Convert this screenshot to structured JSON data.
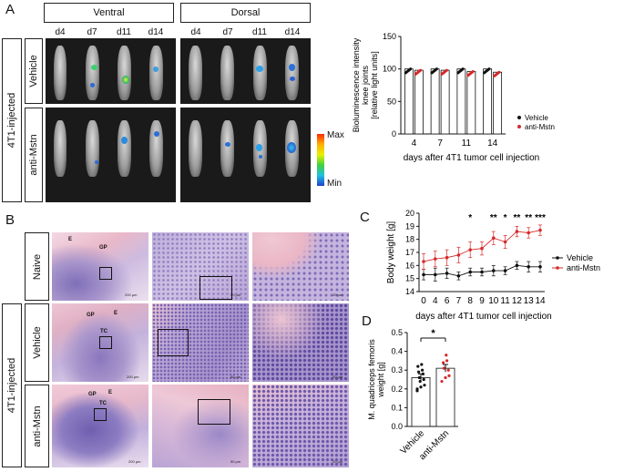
{
  "panels": {
    "A": "A",
    "B": "B",
    "C": "C",
    "D": "D"
  },
  "panelA": {
    "views": [
      "Ventral",
      "Dorsal"
    ],
    "days": [
      "d4",
      "d7",
      "d11",
      "d14"
    ],
    "group_label": "4T1-injected",
    "rows": [
      "Vehicle",
      "anti-Mstn"
    ],
    "colorbar": {
      "max": "Max",
      "min": "Min"
    }
  },
  "panelB": {
    "group_label": "4T1-injected",
    "rows": [
      "Naive",
      "Vehicle",
      "anti-Mstn"
    ],
    "annotations": {
      "E": "E",
      "GP": "GP",
      "TC": "TC"
    },
    "scale_200": "200 µm",
    "scale_50": "50 µm",
    "scale_20": "20 µm"
  },
  "legend": {
    "vehicle": "Vehicle",
    "anti": "anti-Mstn"
  },
  "colors": {
    "vehicle": "#111111",
    "anti": "#d62a2a"
  },
  "chart_data": [
    {
      "type": "bar",
      "panel": "A",
      "ylabel_lines": [
        "Bioluminescence intensity",
        "knee joints",
        "[relative light units]"
      ],
      "xlabel": "days after 4T1 tumor cell injection",
      "categories": [
        "4",
        "7",
        "11",
        "14"
      ],
      "ylim": [
        0,
        150
      ],
      "yticks": [
        "0",
        "50",
        "100",
        "150"
      ],
      "series": [
        {
          "name": "Vehicle",
          "values": [
            100,
            100,
            100,
            100
          ]
        },
        {
          "name": "anti-Mstn",
          "values": [
            98,
            98,
            96,
            95
          ]
        }
      ]
    },
    {
      "type": "line",
      "panel": "C",
      "ylabel": "Body weight [g]",
      "xlabel": "days after 4T1 tumor cell injection",
      "x": [
        "0",
        "4",
        "6",
        "7",
        "8",
        "9",
        "10",
        "11",
        "12",
        "13",
        "14"
      ],
      "ylim": [
        14,
        20
      ],
      "yticks": [
        "14",
        "15",
        "16",
        "17",
        "18",
        "19",
        "20"
      ],
      "significance": [
        "",
        "",
        "",
        "",
        "*",
        "",
        "**",
        "*",
        "**",
        "**",
        "***"
      ],
      "series": [
        {
          "name": "Vehicle",
          "values": [
            15.3,
            15.3,
            15.4,
            15.2,
            15.5,
            15.5,
            15.6,
            15.6,
            16.0,
            15.9,
            15.9
          ],
          "err": [
            0.4,
            0.5,
            0.4,
            0.3,
            0.3,
            0.3,
            0.4,
            0.3,
            0.3,
            0.4,
            0.4
          ]
        },
        {
          "name": "anti-Mstn",
          "values": [
            16.3,
            16.5,
            16.6,
            16.8,
            17.2,
            17.3,
            18.1,
            17.8,
            18.6,
            18.5,
            18.7
          ],
          "err": [
            0.6,
            0.6,
            0.6,
            0.6,
            0.6,
            0.5,
            0.5,
            0.5,
            0.4,
            0.4,
            0.4
          ]
        }
      ]
    },
    {
      "type": "bar",
      "panel": "D",
      "ylabel_lines": [
        "M. quadriceps femoris",
        "weight [g]"
      ],
      "categories": [
        "Vehicle",
        "anti-Mstn"
      ],
      "ylim": [
        0,
        0.5
      ],
      "yticks": [
        "0.0",
        "0.1",
        "0.2",
        "0.3",
        "0.4",
        "0.5"
      ],
      "values": [
        0.26,
        0.31
      ],
      "err": [
        0.02,
        0.02
      ],
      "significance": "*"
    }
  ]
}
